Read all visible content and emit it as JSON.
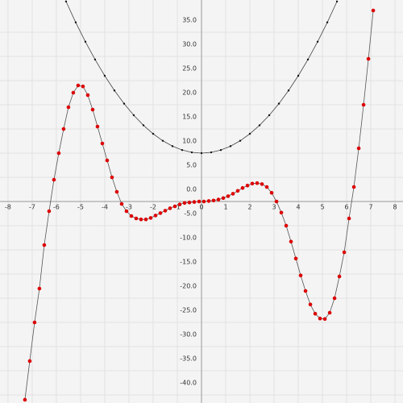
{
  "chart_data": {
    "type": "line",
    "xlim": [
      -8.33,
      8.33
    ],
    "ylim": [
      -41.67,
      41.67
    ],
    "xticks": [
      -8,
      -7,
      -6,
      -5,
      -4,
      -3,
      -2,
      -1,
      0,
      1,
      2,
      3,
      4,
      5,
      6,
      7,
      8
    ],
    "yticks": [
      {
        "value": -40,
        "label": "-40.0"
      },
      {
        "value": -35,
        "label": "-35.0"
      },
      {
        "value": -30,
        "label": "-30.0"
      },
      {
        "value": -25,
        "label": "-25.0"
      },
      {
        "value": -20,
        "label": "-20.0"
      },
      {
        "value": -15,
        "label": "-15.0"
      },
      {
        "value": -10,
        "label": "-10.0"
      },
      {
        "value": -5,
        "label": "-5.0"
      },
      {
        "value": 0,
        "label": "0.0"
      },
      {
        "value": 5,
        "label": "5.0"
      },
      {
        "value": 10,
        "label": "10.0"
      },
      {
        "value": 15,
        "label": "15.0"
      },
      {
        "value": 20,
        "label": "20.0"
      },
      {
        "value": 25,
        "label": "25.0"
      },
      {
        "value": 30,
        "label": "30.0"
      },
      {
        "value": 35,
        "label": "35.0"
      }
    ],
    "grid": true,
    "series": [
      {
        "color": "#111111",
        "x": [
          -5.6,
          -5.2,
          -4.8,
          -4.4,
          -4,
          -3.6,
          -3.2,
          -2.8,
          -2.4,
          -2,
          -1.6,
          -1.2,
          -0.8,
          -0.4,
          0,
          0.4,
          0.8,
          1.2,
          1.6,
          2,
          2.4,
          2.8,
          3.2,
          3.6,
          4,
          4.4,
          4.8,
          5.2,
          5.6
        ],
        "values": [
          41.36,
          37.04,
          33.04,
          29.36,
          26,
          22.96,
          20.24,
          17.84,
          15.76,
          14,
          12.56,
          11.44,
          10.64,
          10.16,
          10,
          10.16,
          10.64,
          11.44,
          12.56,
          14,
          15.76,
          17.84,
          20.24,
          22.96,
          26,
          29.36,
          33.04,
          37.04,
          41.36
        ]
      },
      {
        "color": "#dd0000",
        "x": [
          -7.3,
          -7.1,
          -6.9,
          -6.7,
          -6.5,
          -6.3,
          -6.1,
          -5.9,
          -5.7,
          -5.5,
          -5.3,
          -5.1,
          -4.9,
          -4.7,
          -4.5,
          -4.3,
          -4.1,
          -3.9,
          -3.7,
          -3.5,
          -3.3,
          -3.1,
          -2.9,
          -2.7,
          -2.5,
          -2.3,
          -2.1,
          -1.9,
          -1.7,
          -1.5,
          -1.3,
          -1.1,
          -0.9,
          -0.7,
          -0.5,
          -0.3,
          -0.1,
          0.1,
          0.3,
          0.5,
          0.7,
          0.9,
          1.1,
          1.3,
          1.5,
          1.7,
          1.9,
          2.1,
          2.3,
          2.5,
          2.7,
          2.9,
          3.1,
          3.3,
          3.5,
          3.7,
          3.9,
          4.1,
          4.3,
          4.5,
          4.7,
          4.9,
          5.1,
          5.3,
          5.5,
          5.7,
          5.9,
          6.1,
          6.3,
          6.5,
          6.7,
          6.9,
          7.1
        ],
        "values": [
          -41,
          -33,
          -25,
          -18,
          -9,
          -2,
          4.5,
          10,
          15,
          19.5,
          22.5,
          24,
          23.8,
          22,
          19,
          15.5,
          12,
          8.5,
          5,
          2,
          -0.5,
          -2,
          -3,
          -3.5,
          -3.7,
          -3.7,
          -3.4,
          -2.9,
          -2.4,
          -1.9,
          -1.4,
          -1,
          -0.6,
          -0.3,
          -0.2,
          -0.1,
          0,
          0,
          0.1,
          0.2,
          0.4,
          0.7,
          1.1,
          1.6,
          2.2,
          2.8,
          3.3,
          3.7,
          3.8,
          3.6,
          3,
          1.8,
          0,
          -2.3,
          -5,
          -8.3,
          -11.8,
          -15.3,
          -18.5,
          -21.3,
          -23.2,
          -24.2,
          -24.3,
          -23,
          -20,
          -15.5,
          -10.5,
          -3.5,
          3,
          11,
          20,
          29.5,
          39.5
        ]
      }
    ]
  }
}
